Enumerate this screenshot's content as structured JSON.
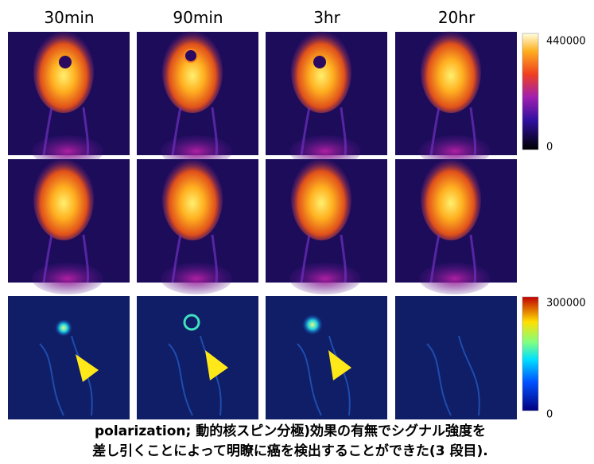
{
  "figure": {
    "columns": [
      "30min",
      "90min",
      "3hr",
      "20hr"
    ],
    "colorbars": [
      {
        "max_label": "440000",
        "min_label": "0"
      },
      {
        "max_label": "300000",
        "min_label": "0"
      }
    ],
    "caption": [
      "polarization; 動的核スピン分極)効果の有無でシグナル強度を",
      "差し引くことによって明瞭に癌を検出することができた(3 段目)."
    ]
  }
}
